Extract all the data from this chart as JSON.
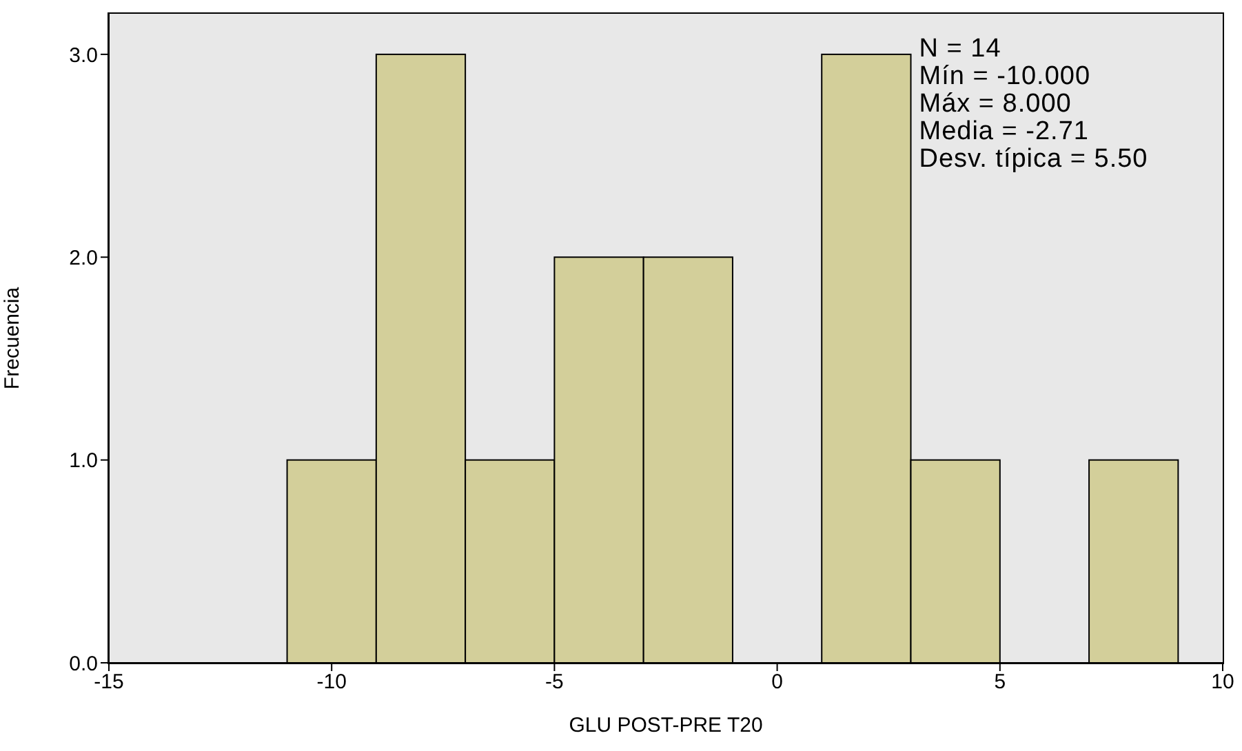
{
  "chart_data": {
    "type": "histogram",
    "xlabel": "GLU POST-PRE T20",
    "ylabel": "Frecuencia",
    "bins": [
      -11,
      -9,
      -7,
      -5,
      -3,
      -1,
      1,
      3,
      5,
      7,
      9
    ],
    "values": [
      1,
      3,
      1,
      2,
      2,
      0,
      3,
      1,
      0,
      1
    ],
    "color": "#d3cf9a",
    "xlim": [
      -15,
      10
    ],
    "xticks": [
      -15,
      -10,
      -5,
      0,
      5,
      10
    ],
    "ylim": [
      0,
      3.2
    ],
    "yticks": [
      {
        "value": 0,
        "label": "0.0"
      },
      {
        "value": 1,
        "label": "1.0"
      },
      {
        "value": 2,
        "label": "2.0"
      },
      {
        "value": 3,
        "label": "3.0"
      }
    ],
    "annotations": [
      "N = 14",
      "Mín = -10.000",
      "Máx = 8.000",
      "Media = -2.71",
      "Desv. típica = 5.50"
    ]
  }
}
